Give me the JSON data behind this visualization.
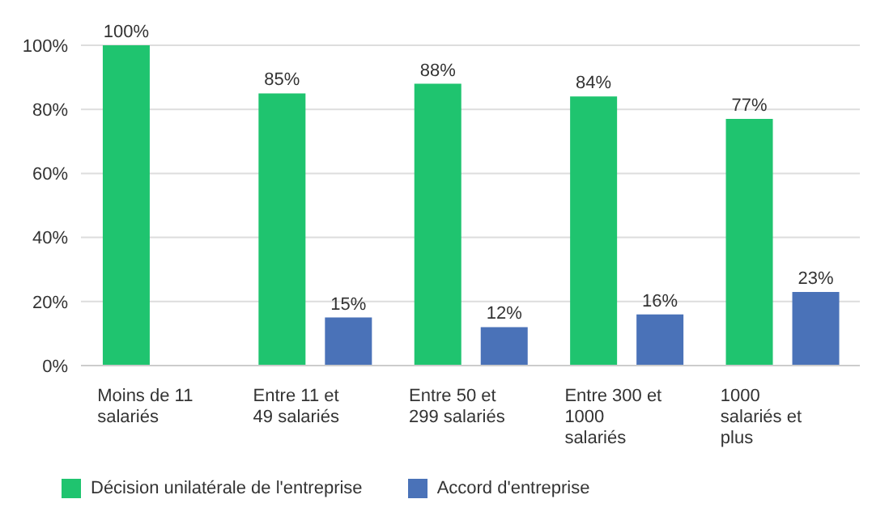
{
  "chart_data": {
    "type": "bar",
    "categories": [
      "Moins de 11 salariés",
      "Entre 11 et 49 salariés",
      "Entre 50 et 299 salariés",
      "Entre 300 et 1000 salariés",
      "1000 salariés et plus"
    ],
    "series": [
      {
        "name": "Décision unilatérale de l'entreprise",
        "color": "#1fc46f",
        "values": [
          100,
          85,
          88,
          84,
          77
        ],
        "value_labels": [
          "100%",
          "85%",
          "88%",
          "84%",
          "77%"
        ]
      },
      {
        "name": "Accord d'entreprise",
        "color": "#4a72b8",
        "values": [
          null,
          15,
          12,
          16,
          23
        ],
        "value_labels": [
          null,
          "15%",
          "12%",
          "16%",
          "23%"
        ]
      }
    ],
    "ylim": [
      0,
      100
    ],
    "yticks": [
      {
        "value": 0,
        "label": "0%"
      },
      {
        "value": 20,
        "label": "20%"
      },
      {
        "value": 40,
        "label": "40%"
      },
      {
        "value": 60,
        "label": "60%"
      },
      {
        "value": 80,
        "label": "80%"
      },
      {
        "value": 100,
        "label": "100%"
      }
    ],
    "grid": "y",
    "legend": "bottom"
  }
}
